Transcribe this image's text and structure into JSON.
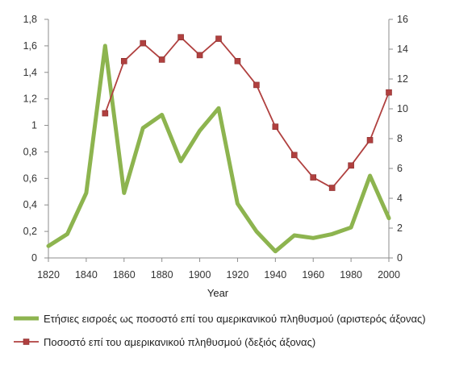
{
  "chart_data": {
    "type": "line",
    "xlabel": "Year",
    "x_ticks": [
      1820,
      1840,
      1860,
      1880,
      1900,
      1920,
      1940,
      1960,
      1980,
      2000
    ],
    "y_left": {
      "ylim": [
        0,
        1.8
      ],
      "ticks": [
        "0",
        "0,2",
        "0,4",
        "0,6",
        "0,8",
        "1",
        "1,2",
        "1,4",
        "1,6",
        "1,8"
      ]
    },
    "y_right": {
      "ylim": [
        0,
        16
      ],
      "ticks": [
        "0",
        "2",
        "4",
        "6",
        "8",
        "10",
        "12",
        "14",
        "16"
      ]
    },
    "grid": false,
    "legend_position": "bottom",
    "series": [
      {
        "name": "Ετήσιες εισροές ως ποσοστό επί του αμερικανικού πληθυσμού (αριστερός άξονας)",
        "axis": "left",
        "color": "#8DB44F",
        "marker": "none",
        "x": [
          1820,
          1830,
          1840,
          1850,
          1860,
          1870,
          1880,
          1890,
          1900,
          1910,
          1920,
          1930,
          1940,
          1950,
          1960,
          1970,
          1980,
          1990,
          2000
        ],
        "values": [
          0.09,
          0.18,
          0.49,
          1.6,
          0.49,
          0.98,
          1.08,
          0.73,
          0.96,
          1.13,
          0.41,
          0.2,
          0.05,
          0.17,
          0.15,
          0.18,
          0.23,
          0.62,
          0.3
        ]
      },
      {
        "name": "Ποσοστό επί του αμερικανικού πληθυσμού (δεξιός άξονας)",
        "axis": "right",
        "color": "#B0403F",
        "marker": "square",
        "x": [
          1850,
          1860,
          1870,
          1880,
          1890,
          1900,
          1910,
          1920,
          1930,
          1940,
          1950,
          1960,
          1970,
          1980,
          1990,
          2000
        ],
        "values": [
          9.7,
          13.2,
          14.4,
          13.3,
          14.8,
          13.6,
          14.7,
          13.2,
          11.6,
          8.8,
          6.9,
          5.4,
          4.7,
          6.2,
          7.9,
          11.1
        ]
      }
    ]
  }
}
